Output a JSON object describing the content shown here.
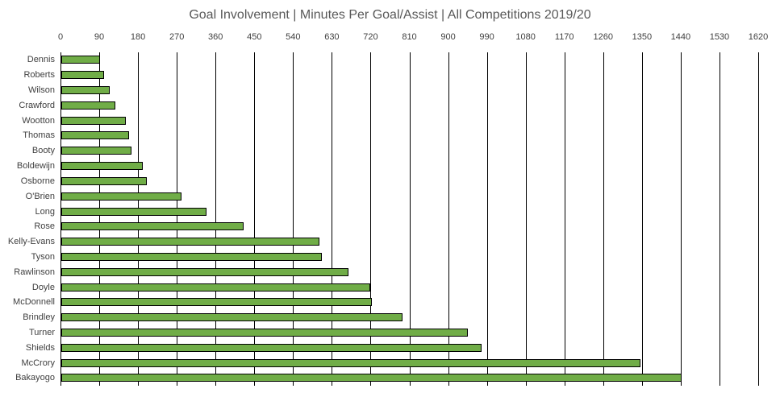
{
  "chart_data": {
    "type": "bar",
    "orientation": "horizontal",
    "title": "Goal Involvement | Minutes Per Goal/Assist | All Competitions 2019/20",
    "categories": [
      "Dennis",
      "Roberts",
      "Wilson",
      "Crawford",
      "Wootton",
      "Thomas",
      "Booty",
      "Boldewijn",
      "Osborne",
      "O'Brien",
      "Long",
      "Rose",
      "Kelly-Evans",
      "Tyson",
      "Rawlinson",
      "Doyle",
      "McDonnell",
      "Brindley",
      "Turner",
      "Shields",
      "McCrory",
      "Bakayogo"
    ],
    "values": [
      90,
      99,
      113,
      126,
      149,
      157,
      162,
      190,
      198,
      279,
      337,
      424,
      600,
      605,
      667,
      718,
      721,
      792,
      944,
      976,
      1344,
      1441
    ],
    "xlabel": "",
    "ylabel": "",
    "xlim": [
      0,
      1620
    ],
    "x_ticks": [
      0,
      90,
      180,
      270,
      360,
      450,
      540,
      630,
      720,
      810,
      900,
      990,
      1080,
      1170,
      1260,
      1350,
      1440,
      1530,
      1620
    ],
    "axis_labels_position": "top",
    "grid": true,
    "legend": false,
    "colors": {
      "bar_fill": "#70AD47",
      "bar_border": "#000000",
      "gridline": "#000000",
      "axis_line": "#000000",
      "title_text": "#595959",
      "tick_text": "#404040",
      "category_text": "#404040"
    }
  }
}
